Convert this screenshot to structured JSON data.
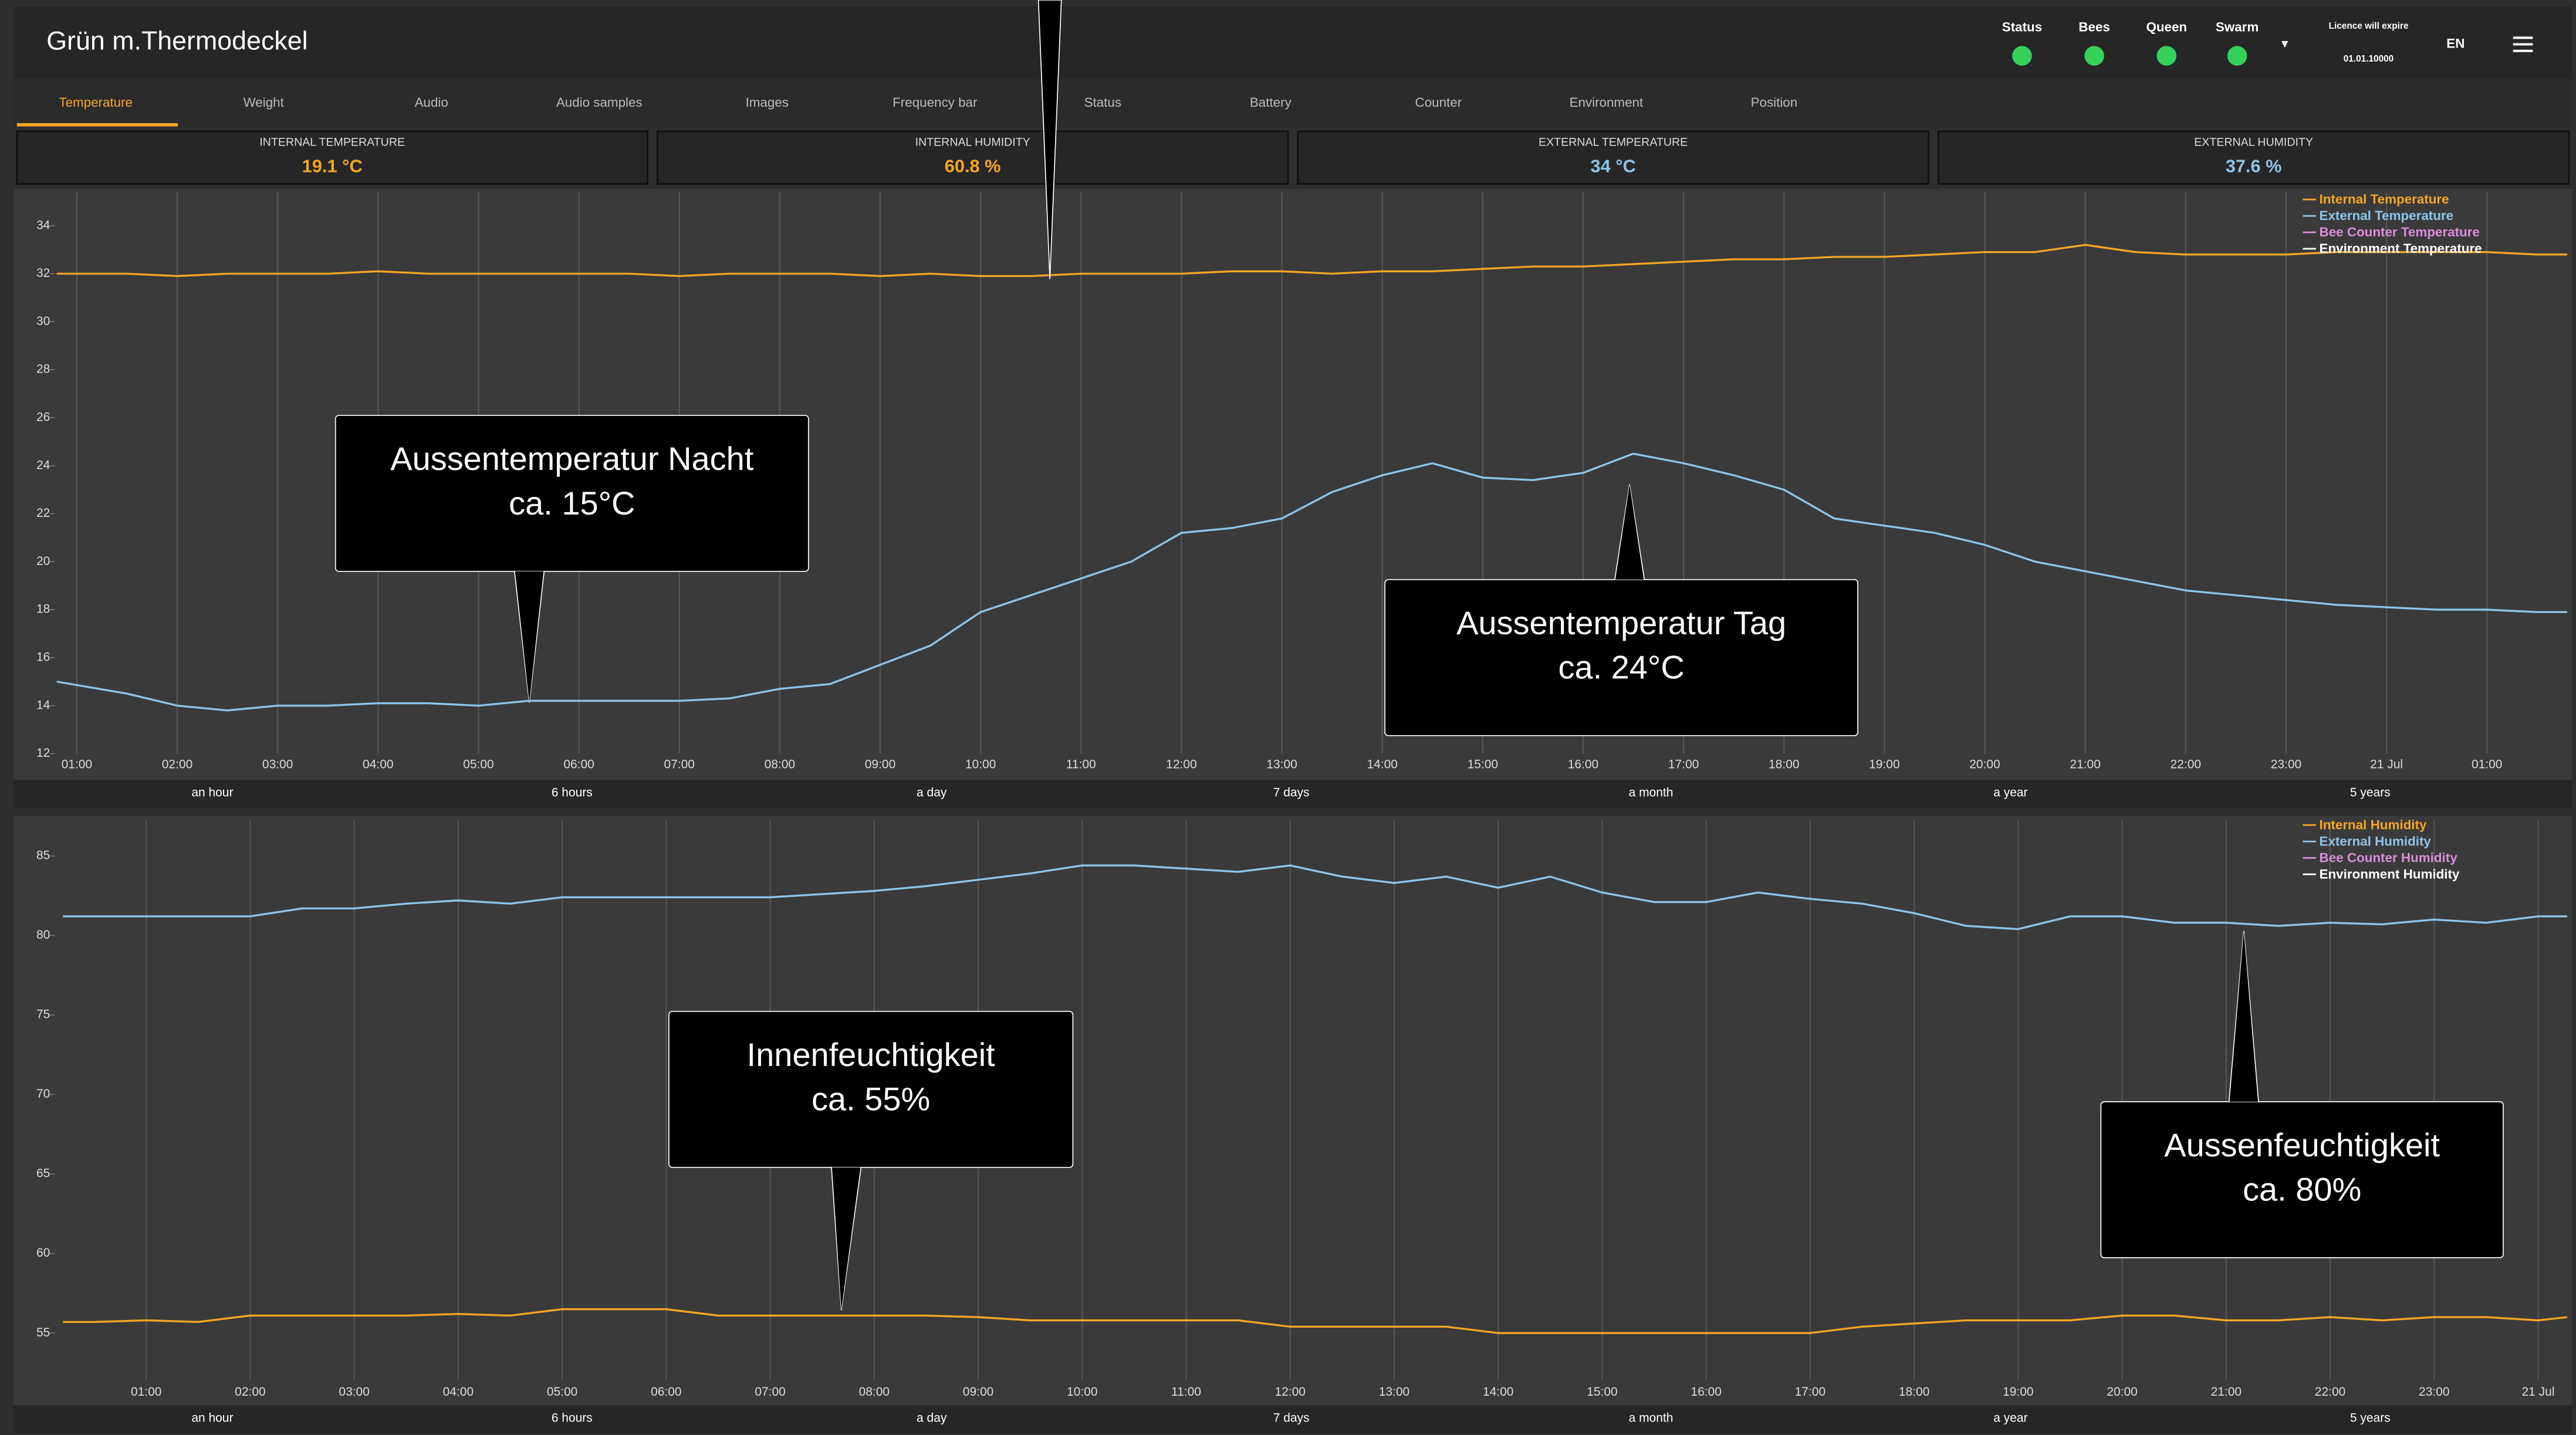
{
  "header": {
    "title": "Grün m.Thermodeckel",
    "indicators": [
      "Status",
      "Bees",
      "Queen",
      "Swarm"
    ],
    "license_label": "Licence will expire",
    "license_date": "01.01.10000",
    "language": "EN"
  },
  "tabs": [
    "Temperature",
    "Weight",
    "Audio",
    "Audio samples",
    "Images",
    "Frequency bar",
    "Status",
    "Battery",
    "Counter",
    "Environment",
    "Position"
  ],
  "metrics": [
    {
      "label": "INTERNAL TEMPERATURE",
      "value": "19.1 °C",
      "color": "#f5a623"
    },
    {
      "label": "INTERNAL HUMIDITY",
      "value": "60.8 %",
      "color": "#f5a623"
    },
    {
      "label": "EXTERNAL TEMPERATURE",
      "value": "34 °C",
      "color": "#8fc4e8"
    },
    {
      "label": "EXTERNAL HUMIDITY",
      "value": "37.6 %",
      "color": "#8fc4e8"
    }
  ],
  "chart_data": [
    {
      "type": "line",
      "xlim": [
        0.78,
        25.8
      ],
      "ylim": [
        12,
        35.4
      ],
      "yticks": [
        12,
        14,
        16,
        18,
        20,
        22,
        24,
        26,
        28,
        30,
        32,
        34
      ],
      "xticks": [
        {
          "value": 1,
          "label": "01:00"
        },
        {
          "value": 2,
          "label": "02:00"
        },
        {
          "value": 3,
          "label": "03:00"
        },
        {
          "value": 4,
          "label": "04:00"
        },
        {
          "value": 5,
          "label": "05:00"
        },
        {
          "value": 6,
          "label": "06:00"
        },
        {
          "value": 7,
          "label": "07:00"
        },
        {
          "value": 8,
          "label": "08:00"
        },
        {
          "value": 9,
          "label": "09:00"
        },
        {
          "value": 10,
          "label": "10:00"
        },
        {
          "value": 11,
          "label": "11:00"
        },
        {
          "value": 12,
          "label": "12:00"
        },
        {
          "value": 13,
          "label": "13:00"
        },
        {
          "value": 14,
          "label": "14:00"
        },
        {
          "value": 15,
          "label": "15:00"
        },
        {
          "value": 16,
          "label": "16:00"
        },
        {
          "value": 17,
          "label": "17:00"
        },
        {
          "value": 18,
          "label": "18:00"
        },
        {
          "value": 19,
          "label": "19:00"
        },
        {
          "value": 20,
          "label": "20:00"
        },
        {
          "value": 21,
          "label": "21:00"
        },
        {
          "value": 22,
          "label": "22:00"
        },
        {
          "value": 23,
          "label": "23:00"
        },
        {
          "value": 24,
          "label": "21 Jul"
        },
        {
          "value": 25,
          "label": "01:00"
        }
      ],
      "x": [
        0.8,
        1.5,
        2,
        2.5,
        3,
        3.5,
        4,
        4.5,
        5,
        5.5,
        6,
        6.5,
        7,
        7.5,
        8,
        8.5,
        9,
        9.5,
        10,
        10.5,
        11,
        11.5,
        12,
        12.5,
        13,
        13.5,
        14,
        14.5,
        15,
        15.5,
        16,
        16.5,
        17,
        17.5,
        18,
        18.5,
        19,
        19.5,
        20,
        20.5,
        21,
        21.5,
        22,
        22.5,
        23,
        23.5,
        24,
        24.5,
        25,
        25.5,
        25.8
      ],
      "series": [
        {
          "name": "Internal Temperature",
          "color": "#f5a623",
          "values": [
            32.0,
            32.0,
            31.9,
            32.0,
            32.0,
            32.0,
            32.1,
            32.0,
            32.0,
            32.0,
            32.0,
            32.0,
            31.9,
            32.0,
            32.0,
            32.0,
            31.9,
            32.0,
            31.9,
            31.9,
            32.0,
            32.0,
            32.0,
            32.1,
            32.1,
            32.0,
            32.1,
            32.1,
            32.2,
            32.3,
            32.3,
            32.4,
            32.5,
            32.6,
            32.6,
            32.7,
            32.7,
            32.8,
            32.9,
            32.9,
            33.2,
            32.9,
            32.8,
            32.8,
            32.8,
            32.9,
            32.9,
            32.9,
            32.9,
            32.8,
            32.8
          ]
        },
        {
          "name": "External Temperature",
          "color": "#8fc4e8",
          "values": [
            15.0,
            14.5,
            14.0,
            13.8,
            14.0,
            14.0,
            14.1,
            14.1,
            14.0,
            14.2,
            14.2,
            14.2,
            14.2,
            14.3,
            14.7,
            14.9,
            15.7,
            16.5,
            17.9,
            18.6,
            19.3,
            20.0,
            21.2,
            21.4,
            21.8,
            22.9,
            23.6,
            24.1,
            23.5,
            23.4,
            23.7,
            24.5,
            24.1,
            23.6,
            23.0,
            21.8,
            21.5,
            21.2,
            20.7,
            20.0,
            19.6,
            19.2,
            18.8,
            18.6,
            18.4,
            18.2,
            18.1,
            18.0,
            18.0,
            17.9,
            17.9
          ]
        },
        {
          "name": "Bee Counter Temperature",
          "color": "#d98fd9"
        },
        {
          "name": "Environment Temperature",
          "color": "#ffffff"
        }
      ],
      "ranges": [
        "an hour",
        "6 hours",
        "a day",
        "7 days",
        "a month",
        "a year",
        "5 years"
      ],
      "annotations": [
        {
          "text": [
            "Aussentemperatur Nacht",
            "ca. 15°C"
          ]
        },
        {
          "text": [
            "Aussentemperatur Tag",
            "ca. 24°C"
          ]
        }
      ]
    },
    {
      "type": "line",
      "xlim": [
        0.12,
        24.28
      ],
      "ylim": [
        52.1,
        87.2
      ],
      "yticks": [
        55,
        60,
        65,
        70,
        75,
        80,
        85
      ],
      "xticks": [
        {
          "value": 1,
          "label": "01:00"
        },
        {
          "value": 2,
          "label": "02:00"
        },
        {
          "value": 3,
          "label": "03:00"
        },
        {
          "value": 4,
          "label": "04:00"
        },
        {
          "value": 5,
          "label": "05:00"
        },
        {
          "value": 6,
          "label": "06:00"
        },
        {
          "value": 7,
          "label": "07:00"
        },
        {
          "value": 8,
          "label": "08:00"
        },
        {
          "value": 9,
          "label": "09:00"
        },
        {
          "value": 10,
          "label": "10:00"
        },
        {
          "value": 11,
          "label": "11:00"
        },
        {
          "value": 12,
          "label": "12:00"
        },
        {
          "value": 13,
          "label": "13:00"
        },
        {
          "value": 14,
          "label": "14:00"
        },
        {
          "value": 15,
          "label": "15:00"
        },
        {
          "value": 16,
          "label": "16:00"
        },
        {
          "value": 17,
          "label": "17:00"
        },
        {
          "value": 18,
          "label": "18:00"
        },
        {
          "value": 19,
          "label": "19:00"
        },
        {
          "value": 20,
          "label": "20:00"
        },
        {
          "value": 21,
          "label": "21:00"
        },
        {
          "value": 22,
          "label": "22:00"
        },
        {
          "value": 23,
          "label": "23:00"
        },
        {
          "value": 24,
          "label": "21 Jul"
        }
      ],
      "x": [
        0.2,
        0.5,
        1,
        1.5,
        2,
        2.5,
        3,
        3.5,
        4,
        4.5,
        5,
        5.5,
        6,
        6.5,
        7,
        7.5,
        8,
        8.5,
        9,
        9.5,
        10,
        10.5,
        11,
        11.5,
        12,
        12.5,
        13,
        13.5,
        14,
        14.5,
        15,
        15.5,
        16,
        16.5,
        17,
        17.5,
        18,
        18.5,
        19,
        19.5,
        20,
        20.5,
        21,
        21.5,
        22,
        22.5,
        23,
        23.5,
        24,
        24.28
      ],
      "series": [
        {
          "name": "Internal Humidity",
          "color": "#f5a623",
          "values": [
            55.7,
            55.7,
            55.8,
            55.7,
            56.1,
            56.1,
            56.1,
            56.1,
            56.2,
            56.1,
            56.5,
            56.5,
            56.5,
            56.1,
            56.1,
            56.1,
            56.1,
            56.1,
            56.0,
            55.8,
            55.8,
            55.8,
            55.8,
            55.8,
            55.4,
            55.4,
            55.4,
            55.4,
            55.0,
            55.0,
            55.0,
            55.0,
            55.0,
            55.0,
            55.0,
            55.4,
            55.6,
            55.8,
            55.8,
            55.8,
            56.1,
            56.1,
            55.8,
            55.8,
            56.0,
            55.8,
            56.0,
            56.0,
            55.8,
            56.0
          ]
        },
        {
          "name": "External Humidity",
          "color": "#8fc4e8",
          "values": [
            81.2,
            81.2,
            81.2,
            81.2,
            81.2,
            81.7,
            81.7,
            82.0,
            82.2,
            82.0,
            82.4,
            82.4,
            82.4,
            82.4,
            82.4,
            82.6,
            82.8,
            83.1,
            83.5,
            83.9,
            84.4,
            84.4,
            84.2,
            84.0,
            84.4,
            83.7,
            83.3,
            83.7,
            83.0,
            83.7,
            82.7,
            82.1,
            82.1,
            82.7,
            82.3,
            82.0,
            81.4,
            80.6,
            80.4,
            81.2,
            81.2,
            80.8,
            80.8,
            80.6,
            80.8,
            80.7,
            81.0,
            80.8,
            81.2,
            81.2
          ]
        },
        {
          "name": "Bee Counter Humidity",
          "color": "#d98fd9"
        },
        {
          "name": "Environment Humidity",
          "color": "#ffffff"
        }
      ],
      "ranges": [
        "an hour",
        "6 hours",
        "a day",
        "7 days",
        "a month",
        "a year",
        "5 years"
      ],
      "annotations": [
        {
          "text": [
            "Innenfeuchtigkeit",
            "ca. 55%"
          ]
        },
        {
          "text": [
            "Aussenfeuchtigkeit",
            "ca. 80%"
          ]
        }
      ]
    }
  ]
}
